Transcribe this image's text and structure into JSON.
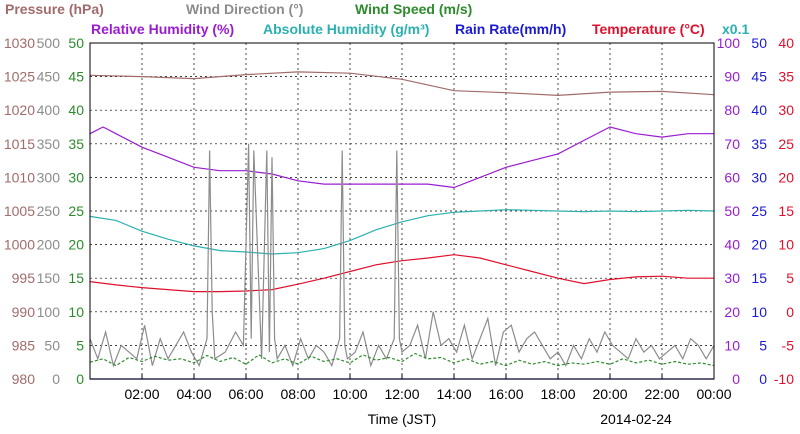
{
  "chart_data": {
    "type": "line",
    "legend": [
      {
        "label": "Pressure (hPa)",
        "color": "#a26b6b"
      },
      {
        "label": "Wind Direction (°)",
        "color": "#8c8c8c"
      },
      {
        "label": "Wind Speed (m/s)",
        "color": "#2c8c2c"
      },
      {
        "label": "Relative Humidity (%)",
        "color": "#9a1ccf"
      },
      {
        "label": "Absolute Humidity (g/m³)",
        "color": "#2bb0b0"
      },
      {
        "label": "Rain Rate(mm/h)",
        "color": "#1a1ad0"
      },
      {
        "label": "Temperature (°C)",
        "color": "#e0102c"
      }
    ],
    "scale_note": "x0.1",
    "xlabel": "Time (JST)",
    "date_label": "2014-02-24",
    "x_range": [
      0,
      24
    ],
    "x_ticks": [
      "02:00",
      "04:00",
      "06:00",
      "08:00",
      "10:00",
      "12:00",
      "14:00",
      "16:00",
      "18:00",
      "20:00",
      "22:00",
      "00:00"
    ],
    "axes": {
      "pressure": {
        "range": [
          980,
          1030
        ],
        "ticks": [
          "1030",
          "1025",
          "1020",
          "1015",
          "1010",
          "1005",
          "1000",
          "995",
          "990",
          "985",
          "980"
        ],
        "color": "#a26b6b"
      },
      "wind_direction": {
        "range": [
          0,
          500
        ],
        "ticks": [
          "500",
          "450",
          "400",
          "350",
          "300",
          "250",
          "200",
          "150",
          "100",
          "50",
          "0"
        ],
        "color": "#8c8c8c"
      },
      "wind_speed": {
        "range": [
          0,
          50
        ],
        "ticks": [
          "50",
          "45",
          "40",
          "35",
          "30",
          "25",
          "20",
          "15",
          "10",
          "5",
          "0"
        ],
        "color": "#2c8c2c"
      },
      "humidity": {
        "range": [
          0,
          100
        ],
        "ticks": [
          "100",
          "90",
          "80",
          "70",
          "60",
          "50",
          "40",
          "30",
          "20",
          "10",
          "0"
        ],
        "color": "#9a1ccf"
      },
      "rain_rate": {
        "range": [
          0,
          50
        ],
        "ticks": [
          "50",
          "45",
          "40",
          "35",
          "30",
          "25",
          "20",
          "15",
          "10",
          "5",
          "0"
        ],
        "color": "#1a1ad0"
      },
      "temperature": {
        "range": [
          -10,
          40
        ],
        "ticks": [
          "40",
          "35",
          "30",
          "25",
          "20",
          "15",
          "10",
          "5",
          "0",
          "-5",
          "-10"
        ],
        "color": "#e0102c"
      }
    },
    "grid": true,
    "series": [
      {
        "name": "Pressure (hPa)",
        "axis": "pressure",
        "color": "#a26b6b",
        "x": [
          0,
          2,
          4,
          6,
          8,
          10,
          12,
          14,
          16,
          18,
          20,
          22,
          24
        ],
        "y": [
          1025.2,
          1025.0,
          1024.7,
          1025.3,
          1025.7,
          1025.5,
          1024.6,
          1022.9,
          1022.6,
          1022.2,
          1022.7,
          1022.8,
          1022.3
        ]
      },
      {
        "name": "Relative Humidity (%)",
        "axis": "humidity",
        "color": "#9a1ccf",
        "x": [
          0,
          0.5,
          1,
          2,
          3,
          4,
          5,
          6,
          7,
          8,
          9,
          10,
          11,
          12,
          13,
          14,
          15,
          16,
          17,
          18,
          19,
          20,
          21,
          22,
          23,
          24
        ],
        "y": [
          73,
          75,
          73,
          69,
          66,
          63,
          62,
          62,
          61,
          59,
          58,
          58,
          58,
          58,
          58,
          57,
          60,
          63,
          65,
          67,
          71,
          75,
          73,
          72,
          73,
          73
        ]
      },
      {
        "name": "Absolute Humidity (g/m³)",
        "axis": "wind_speed",
        "color": "#2bb0b0",
        "x": [
          0,
          1,
          2,
          3,
          4,
          5,
          6,
          7,
          8,
          9,
          10,
          11,
          12,
          13,
          14,
          15,
          16,
          17,
          18,
          19,
          20,
          21,
          22,
          23,
          24
        ],
        "y": [
          24.2,
          23.6,
          22.0,
          20.8,
          19.8,
          19.1,
          18.9,
          18.6,
          18.8,
          19.4,
          20.6,
          22.2,
          23.4,
          24.3,
          24.8,
          25.0,
          25.2,
          25.1,
          25.0,
          24.9,
          25.0,
          24.9,
          25.0,
          25.1,
          25.0
        ]
      },
      {
        "name": "Temperature (°C)",
        "axis": "temperature",
        "color": "#e0102c",
        "x": [
          0,
          1,
          2,
          3,
          4,
          5,
          6,
          7,
          8,
          9,
          10,
          11,
          12,
          13,
          14,
          15,
          16,
          17,
          18,
          19,
          20,
          21,
          22,
          23,
          24
        ],
        "y": [
          4.5,
          4.0,
          3.6,
          3.3,
          3.0,
          3.0,
          3.1,
          3.3,
          4.1,
          5.0,
          6.0,
          7.0,
          7.6,
          8.0,
          8.5,
          8.0,
          7.0,
          6.0,
          5.0,
          4.2,
          4.8,
          5.2,
          5.3,
          5.0,
          5.0
        ]
      },
      {
        "name": "Wind Direction (°)",
        "axis": "wind_direction",
        "color": "#8c8c8c",
        "x": [
          0,
          0.3,
          0.6,
          0.9,
          1.2,
          1.5,
          1.8,
          2.1,
          2.4,
          2.7,
          3.0,
          3.3,
          3.6,
          3.9,
          4.2,
          4.5,
          4.6,
          4.7,
          4.8,
          5.2,
          5.6,
          5.9,
          6.1,
          6.2,
          6.3,
          6.6,
          6.8,
          6.9,
          7.0,
          7.1,
          7.2,
          7.5,
          7.8,
          8.1,
          8.4,
          8.7,
          9.0,
          9.3,
          9.6,
          9.7,
          9.8,
          9.9,
          10.2,
          10.5,
          10.8,
          11.1,
          11.4,
          11.7,
          11.8,
          11.9,
          12.0,
          12.3,
          12.6,
          12.9,
          13.2,
          13.5,
          13.8,
          14.1,
          14.4,
          14.7,
          15.0,
          15.3,
          15.6,
          15.9,
          16.2,
          16.5,
          16.8,
          17.1,
          17.4,
          17.7,
          18.0,
          18.3,
          18.6,
          18.9,
          19.2,
          19.5,
          19.8,
          20.1,
          20.4,
          20.7,
          21.0,
          21.3,
          21.6,
          21.9,
          22.2,
          22.5,
          22.8,
          23.1,
          23.4,
          23.7,
          24.0
        ],
        "y": [
          60,
          30,
          70,
          20,
          50,
          40,
          30,
          80,
          20,
          60,
          30,
          50,
          70,
          40,
          20,
          60,
          340,
          100,
          30,
          40,
          70,
          50,
          350,
          60,
          340,
          30,
          340,
          40,
          330,
          60,
          30,
          50,
          20,
          60,
          30,
          50,
          40,
          20,
          60,
          340,
          50,
          30,
          40,
          70,
          20,
          50,
          30,
          60,
          340,
          60,
          40,
          50,
          80,
          30,
          100,
          50,
          60,
          40,
          80,
          30,
          60,
          90,
          20,
          70,
          80,
          40,
          60,
          70,
          50,
          30,
          40,
          20,
          50,
          30,
          60,
          40,
          70,
          50,
          40,
          30,
          60,
          40,
          50,
          30,
          40,
          50,
          30,
          60,
          50,
          30,
          50
        ]
      },
      {
        "name": "Wind Speed (m/s)",
        "axis": "wind_speed",
        "color": "#2c8c2c",
        "x": [
          0,
          0.5,
          1,
          1.5,
          2,
          2.5,
          3,
          3.5,
          4,
          4.5,
          5,
          5.5,
          6,
          6.5,
          7,
          7.5,
          8,
          8.5,
          9,
          9.5,
          10,
          10.5,
          11,
          11.5,
          12,
          12.5,
          13,
          13.5,
          14,
          14.5,
          15,
          15.5,
          16,
          16.5,
          17,
          17.5,
          18,
          18.5,
          19,
          19.5,
          20,
          20.5,
          21,
          21.5,
          22,
          22.5,
          23,
          23.5,
          24
        ],
        "y": [
          2.5,
          3.0,
          2.0,
          3.2,
          2.6,
          3.4,
          2.8,
          3.0,
          2.4,
          3.5,
          2.6,
          3.2,
          2.2,
          3.6,
          2.4,
          3.0,
          2.2,
          3.4,
          2.6,
          3.0,
          2.4,
          3.6,
          2.8,
          3.2,
          2.6,
          3.8,
          3.0,
          3.2,
          2.4,
          3.0,
          2.2,
          2.6,
          2.0,
          2.8,
          2.2,
          2.6,
          2.0,
          2.4,
          2.2,
          2.6,
          2.2,
          3.0,
          2.4,
          2.8,
          2.2,
          2.6,
          2.2,
          2.4,
          2.0
        ]
      },
      {
        "name": "Rain Rate(mm/h)",
        "axis": "rain_rate",
        "color": "#1a1ad0",
        "x": [
          0,
          24
        ],
        "y": [
          0,
          0
        ]
      }
    ]
  }
}
